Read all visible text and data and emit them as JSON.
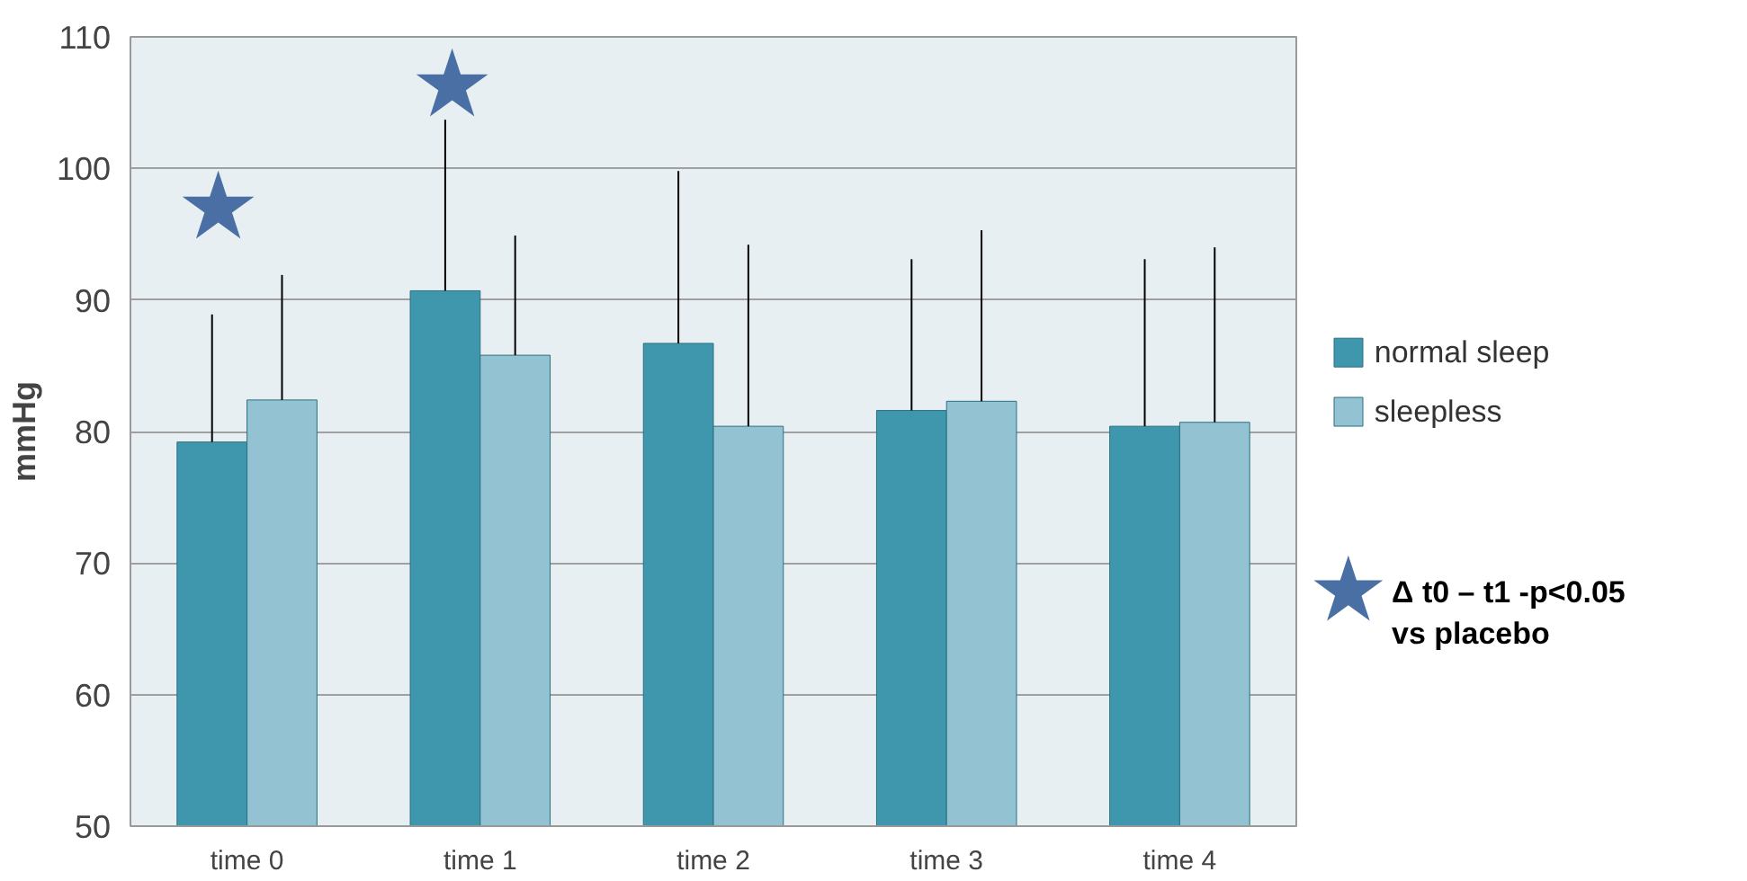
{
  "chart_data": {
    "type": "bar",
    "ylabel": "mmHg",
    "categories": [
      "time 0",
      "time 1",
      "time 2",
      "time 3",
      "time 4"
    ],
    "series": [
      {
        "name": "normal sleep",
        "color": "#3f97ad",
        "values": [
          79.2,
          90.7,
          86.7,
          81.6,
          80.4
        ],
        "errors": [
          [
            79.2,
            88.9
          ],
          [
            90.7,
            103.7
          ],
          [
            86.7,
            99.8
          ],
          [
            81.6,
            93.1
          ],
          [
            80.4,
            93.1
          ]
        ]
      },
      {
        "name": "sleepless",
        "color": "#93c3d3",
        "values": [
          82.4,
          85.8,
          80.4,
          82.3,
          80.7
        ],
        "errors": [
          [
            82.4,
            91.9
          ],
          [
            85.8,
            94.9
          ],
          [
            80.4,
            94.2
          ],
          [
            82.3,
            95.3
          ],
          [
            80.7,
            94.0
          ]
        ]
      }
    ],
    "ylim": [
      50,
      110
    ],
    "yticks": [
      50,
      60,
      70,
      80,
      90,
      100,
      110
    ],
    "grid": "y",
    "legend": "right",
    "annotations": [
      "★",
      "★",
      "★",
      "Δ t0 – t1 -p<0.05\nvs placebo"
    ]
  }
}
